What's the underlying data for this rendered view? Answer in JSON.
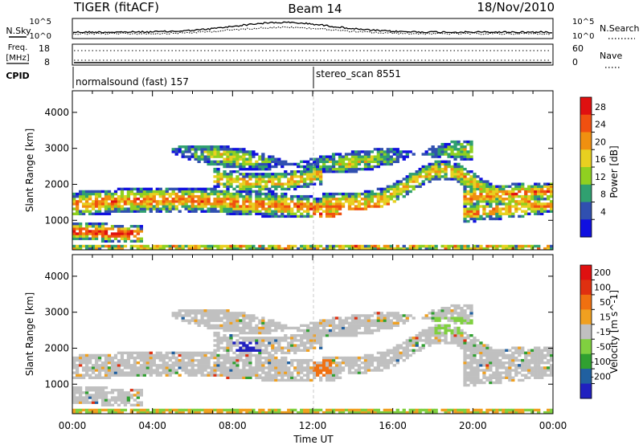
{
  "header": {
    "title": "TIGER (fitACF)",
    "beam": "Beam 14",
    "date": "18/Nov/2010"
  },
  "nsky_panel": {
    "left_label": "N.Sky",
    "right_label": "N.Search",
    "left_ticks": [
      "10^5",
      "10^0"
    ],
    "right_ticks": [
      "10^5",
      "10^0"
    ]
  },
  "freq_panel": {
    "left_label_line1": "Freq.",
    "left_label_line2": "[MHz]",
    "right_label": "Nave",
    "left_ticks": [
      "18",
      "8"
    ],
    "right_ticks": [
      "60",
      "0"
    ]
  },
  "cpid_panel": {
    "label": "CPID",
    "mode1": "normalsound (fast) 157",
    "mode2": "stereo_scan 8551"
  },
  "colors": {
    "power": [
      "#1010e0",
      "#3050b0",
      "#30a070",
      "#90d020",
      "#e8d020",
      "#f09010",
      "#f05010",
      "#e01010"
    ],
    "velocity": [
      "#2020c0",
      "#2060a0",
      "#30a030",
      "#80d040",
      "#c0c0c0",
      "#f0a020",
      "#f07010",
      "#e03010",
      "#e01010"
    ],
    "grid_gray": "#c8c8c8"
  },
  "chart_data": [
    {
      "type": "heatmap",
      "title": "Power",
      "ylabel": "Slant Range [km]",
      "xlabel": "Time UT",
      "xlim": [
        "00:00",
        "24:00"
      ],
      "ylim": [
        180,
        4600
      ],
      "xticks": [
        "00:00",
        "04:00",
        "08:00",
        "12:00",
        "16:00",
        "20:00",
        "00:00"
      ],
      "yticks": [
        "1000",
        "2000",
        "3000",
        "4000"
      ],
      "colorbar": {
        "label": "Power [dB]",
        "ticks": [
          "4",
          "8",
          "12",
          "16",
          "20",
          "24",
          "28"
        ],
        "range": [
          0,
          30
        ]
      }
    },
    {
      "type": "heatmap",
      "title": "Velocity",
      "ylabel": "Slant Range [km]",
      "xlabel": "Time UT",
      "xlim": [
        "00:00",
        "24:00"
      ],
      "ylim": [
        180,
        4600
      ],
      "xticks": [
        "00:00",
        "04:00",
        "08:00",
        "12:00",
        "16:00",
        "20:00",
        "00:00"
      ],
      "yticks": [
        "1000",
        "2000",
        "3000",
        "4000"
      ],
      "colorbar": {
        "label": "Velocity [m s^-1]",
        "ticks": [
          "200",
          "100",
          "50",
          "15",
          "-15",
          "-50",
          "-100",
          "-200"
        ],
        "range": [
          -250,
          250
        ]
      }
    }
  ]
}
